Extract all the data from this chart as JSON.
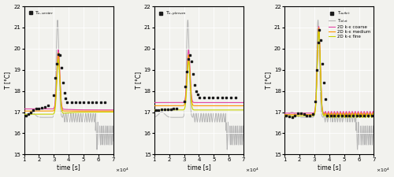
{
  "xlim": [
    10000,
    70000
  ],
  "ylim": [
    15,
    22
  ],
  "yticks": [
    15,
    16,
    17,
    18,
    19,
    20,
    21,
    22
  ],
  "xticks": [
    10000,
    20000,
    30000,
    40000,
    50000,
    60000,
    70000
  ],
  "xlabel": "time [s]",
  "ylabel": "T [°C]",
  "subplot_titles": [
    "T$_{s,center}$",
    "T$_{s,plenum}$",
    "T$_{outlet}$"
  ],
  "legend_labels": [
    "T$_{inlet}$",
    "2D k-ε coarse",
    "2D k-ε medium",
    "2D k-ε fine"
  ],
  "col_inlet": "#b5b5b5",
  "col_coarse": "#e040a0",
  "col_medium": "#ff9500",
  "col_fine": "#c8d400",
  "col_meas": "#1a1a1a",
  "background": "#f2f2ee"
}
